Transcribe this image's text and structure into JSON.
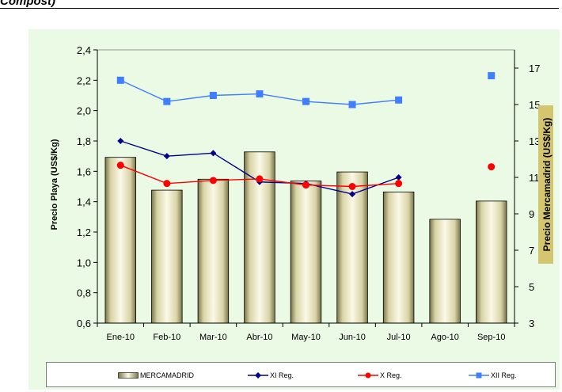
{
  "page": {
    "header_fragment": "Compost)"
  },
  "chart_data": {
    "type": "bar",
    "categories": [
      "Ene-10",
      "Feb-10",
      "Mar-10",
      "Abr-10",
      "May-10",
      "Jun-10",
      "Jul-10",
      "Ago-10",
      "Sep-10"
    ],
    "ylabel": "Precio Playa (US$/Kg)",
    "y2label": "Precio Mercamadrid (US$/Kg)",
    "ylim": [
      0.6,
      2.4
    ],
    "y_ticks": [
      "0,6",
      "0,8",
      "1,0",
      "1,2",
      "1,4",
      "1,6",
      "1,8",
      "2,0",
      "2,2",
      "2,4"
    ],
    "y2lim": [
      3,
      18
    ],
    "y2_ticks": [
      "3",
      "5",
      "7",
      "9",
      "11",
      "13",
      "15",
      "17"
    ],
    "grid": false,
    "legend_position": "bottom",
    "bar_series": {
      "name": "MERCAMADRID",
      "axis": "right",
      "values": [
        12.1,
        10.3,
        10.9,
        12.4,
        10.8,
        11.3,
        10.2,
        8.7,
        9.7
      ]
    },
    "line_series": [
      {
        "name": "XI Reg.",
        "axis": "left",
        "color": "#00008b",
        "marker": "diamond",
        "values": [
          1.8,
          1.7,
          1.72,
          1.53,
          1.52,
          1.45,
          1.56,
          null,
          null
        ]
      },
      {
        "name": "X Reg.",
        "axis": "left",
        "color": "#ff0000",
        "marker": "circle",
        "values": [
          1.64,
          1.52,
          1.54,
          1.55,
          1.51,
          1.5,
          1.52,
          null,
          1.63
        ]
      },
      {
        "name": "XII Reg.",
        "axis": "left",
        "color": "#3f7fff",
        "marker": "square",
        "values": [
          2.2,
          2.06,
          2.1,
          2.11,
          2.06,
          2.04,
          2.07,
          null,
          2.23
        ]
      }
    ],
    "colors": {
      "plot_background": "#ebfae4",
      "bar_fill_light": "#f3f0d4",
      "bar_fill_dark": "#9a9566"
    }
  }
}
